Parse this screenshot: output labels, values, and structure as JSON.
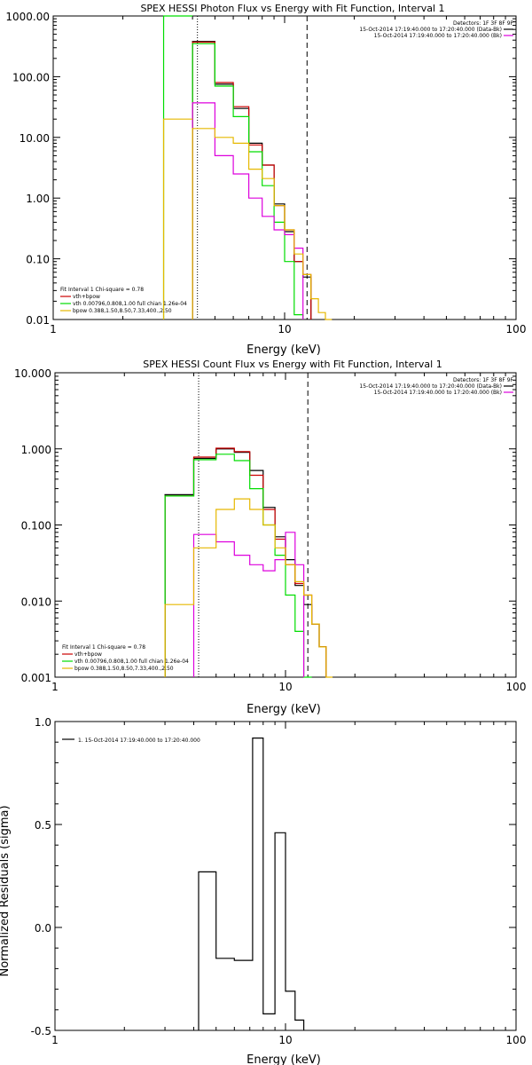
{
  "colors": {
    "background": "#ffffff",
    "axes": "#000000",
    "black": "#000000",
    "red": "#cc0000",
    "green": "#00dd00",
    "magenta": "#dd00dd",
    "yellow": "#e6b800"
  },
  "chart_data": [
    {
      "type": "line",
      "title": "SPEX HESSI Photon Flux vs Energy with Fit Function, Interval 1",
      "xlabel": "Energy (keV)",
      "ylabel": "",
      "xscale": "log",
      "yscale": "log",
      "xlim": [
        1,
        100
      ],
      "ylim": [
        0.01,
        1000
      ],
      "x_ticks": [
        "1",
        "10",
        "100"
      ],
      "y_ticks": [
        "0.01",
        "0.10",
        "1.00",
        "10.00",
        "100.00",
        "1000.00"
      ],
      "legend_top": [
        "Detectors: 1F 3F 8F 9F",
        "15-Oct-2014 17:19:40.000 to 17:20:40.000 (Data-Bk)",
        "15-Oct-2014 17:19:40.000 to 17:20:40.000 (Bk)"
      ],
      "legend_bottom": [
        "Fit Interval 1    Chi-square = 0.78",
        "vth+bpow",
        "vth 0.00796,0.808,1.00  full chian 1.26e-04",
        "bpow 0.388,1.50,8.50,7.33,400.,2.50"
      ],
      "vlines": [
        {
          "x": 4.2,
          "style": "dotted"
        },
        {
          "x": 12.5,
          "style": "dashed"
        }
      ],
      "edges": [
        4,
        5,
        6,
        7,
        8,
        9,
        10,
        11,
        12,
        13,
        14,
        15,
        16
      ],
      "series": [
        {
          "name": "Data-Bk",
          "color": "black",
          "values": [
            380,
            75,
            30,
            8,
            3.5,
            0.8,
            0.28,
            0.09,
            0.05,
            null,
            null,
            null
          ]
        },
        {
          "name": "vth+bpow",
          "color": "red",
          "values": [
            370,
            80,
            32,
            7.5,
            3.5,
            0.75,
            0.3,
            0.09,
            0.055,
            null,
            null,
            null
          ]
        },
        {
          "name": "vth",
          "color": "green",
          "values": [
            350,
            70,
            22,
            5.8,
            1.6,
            0.4,
            0.09,
            0.012,
            null,
            null,
            null,
            null
          ]
        },
        {
          "name": "Bk",
          "color": "magenta",
          "values": [
            37,
            5,
            2.5,
            1,
            0.5,
            0.3,
            0.25,
            0.15,
            null,
            null,
            null,
            null
          ]
        },
        {
          "name": "bpow",
          "color": "yellow",
          "values": [
            14,
            10,
            8,
            3,
            2.1,
            0.75,
            0.3,
            0.12,
            0.055,
            0.022,
            0.013,
            0.01
          ]
        }
      ],
      "extras": [
        {
          "color": "green",
          "from": 3.0,
          "to": 4.0,
          "value": 1000
        },
        {
          "color": "yellow",
          "from": 3.0,
          "to": 4.0,
          "value": 20
        }
      ]
    },
    {
      "type": "line",
      "title": "SPEX HESSI Count Flux vs Energy with Fit Function, Interval 1",
      "xlabel": "Energy (keV)",
      "ylabel": "",
      "xscale": "log",
      "yscale": "log",
      "xlim": [
        1,
        100
      ],
      "ylim": [
        0.001,
        10
      ],
      "x_ticks": [
        "1",
        "10",
        "100"
      ],
      "y_ticks": [
        "0.001",
        "0.010",
        "0.100",
        "1.000",
        "10.000"
      ],
      "legend_top": [
        "Detectors: 1F 3F 8F 9F",
        "15-Oct-2014 17:19:40.000 to 17:20:40.000 (Data-Bk)",
        "15-Oct-2014 17:19:40.000 to 17:20:40.000 (Bk)"
      ],
      "legend_bottom": [
        "Fit Interval 1    Chi-square = 0.78",
        "vth+bpow",
        "vth 0.00796,0.808,1.00  full chian 1.26e-04",
        "bpow 0.388,1.50,8.50,7.33,400.,2.50"
      ],
      "vlines": [
        {
          "x": 4.2,
          "style": "dotted"
        },
        {
          "x": 12.5,
          "style": "dashed"
        }
      ],
      "edges": [
        3,
        4,
        5,
        6,
        7,
        8,
        9,
        10,
        11,
        12,
        13,
        14,
        15,
        16
      ],
      "series": [
        {
          "name": "Data-Bk",
          "color": "black",
          "values": [
            0.25,
            0.75,
            1.0,
            0.9,
            0.52,
            0.17,
            0.07,
            0.035,
            0.016,
            0.009,
            0.005,
            0.0025,
            null
          ]
        },
        {
          "name": "vth+bpow",
          "color": "red",
          "values": [
            0.24,
            0.78,
            1.02,
            0.92,
            0.45,
            0.16,
            0.065,
            0.03,
            0.017,
            0.012,
            0.005,
            0.0025,
            null
          ]
        },
        {
          "name": "vth",
          "color": "green",
          "values": [
            0.24,
            0.72,
            0.85,
            0.7,
            0.3,
            0.1,
            0.04,
            0.012,
            0.004,
            0.001,
            null,
            null,
            null
          ]
        },
        {
          "name": "Bk",
          "color": "magenta",
          "values": [
            null,
            0.075,
            0.06,
            0.04,
            0.03,
            0.025,
            0.035,
            0.08,
            0.03,
            null,
            null,
            null,
            null
          ]
        },
        {
          "name": "bpow",
          "color": "yellow",
          "values": [
            0.009,
            0.05,
            0.16,
            0.22,
            0.16,
            0.1,
            0.05,
            0.03,
            0.018,
            0.012,
            0.005,
            0.0025,
            0.001
          ]
        }
      ],
      "extras": []
    },
    {
      "type": "line",
      "title": "",
      "xlabel": "Energy (keV)",
      "ylabel": "Normalized Residuals (sigma)",
      "xscale": "log",
      "yscale": "linear",
      "xlim": [
        1,
        100
      ],
      "ylim": [
        -0.5,
        1.0
      ],
      "x_ticks": [
        "1",
        "10",
        "100"
      ],
      "y_ticks": [
        "-0.5",
        "0.0",
        "0.5",
        "1.0"
      ],
      "legend_top": [
        "1. 15-Oct-2014 17:19:40.000 to 17:20:40.000"
      ],
      "legend_bottom": [],
      "vlines": [],
      "edges": [
        4.2,
        5.0,
        6.0,
        7.2,
        8.0,
        9.0,
        10.0,
        11.0,
        12.0
      ],
      "series": [
        {
          "name": "1. 15-Oct-2014 17:19:40.000 to 17:20:40.000",
          "color": "black",
          "values": [
            0.27,
            -0.15,
            -0.16,
            0.92,
            -0.42,
            0.46,
            -0.31,
            -0.45
          ]
        }
      ],
      "extras": []
    }
  ]
}
